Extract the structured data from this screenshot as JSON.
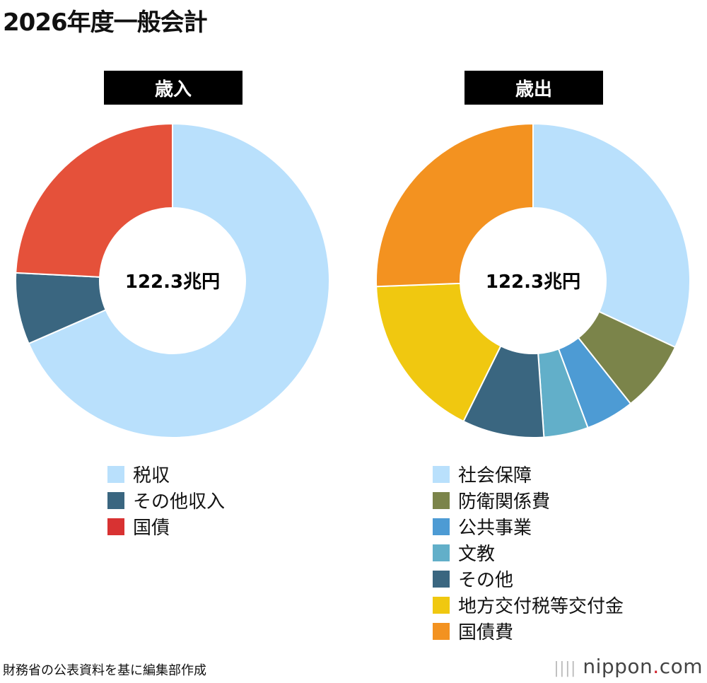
{
  "title": "2026年度一般会計",
  "chart_data": [
    {
      "type": "pie",
      "donut": true,
      "header": "歳入",
      "center_label": "122.3兆円",
      "unit": "兆円",
      "total": 122.3,
      "categories": [
        "税収",
        "その他収入",
        "国債"
      ],
      "values": [
        83.7,
        9.0,
        29.6
      ],
      "colors": [
        "#b9e0fc",
        "#3a6680",
        "#e5513a"
      ],
      "legend_colors": [
        "#b9e0fc",
        "#3a6680",
        "#d83232"
      ],
      "start": "top",
      "direction": "clockwise",
      "legend": "bottom"
    },
    {
      "type": "pie",
      "donut": true,
      "header": "歳出",
      "center_label": "122.3兆円",
      "unit": "兆円",
      "total": 122.3,
      "categories": [
        "社会保障",
        "防衛関係費",
        "公共事業",
        "文教",
        "その他",
        "地方交付税等交付金",
        "国債費"
      ],
      "values": [
        39.1,
        9.0,
        6.1,
        5.6,
        10.3,
        20.9,
        31.3
      ],
      "colors": [
        "#b9e0fc",
        "#7b844a",
        "#4d9bd4",
        "#62afc9",
        "#3a6680",
        "#f0c810",
        "#f39220"
      ],
      "legend_colors": [
        "#b9e0fc",
        "#7b844a",
        "#4d9bd4",
        "#62afc9",
        "#3a6680",
        "#f0c810",
        "#f39220"
      ],
      "start": "top",
      "direction": "clockwise",
      "legend": "bottom"
    }
  ],
  "source": "財務省の公表資料を基に編集部作成",
  "logo": {
    "name": "nippon",
    "dot": ".",
    "tld": "com"
  }
}
